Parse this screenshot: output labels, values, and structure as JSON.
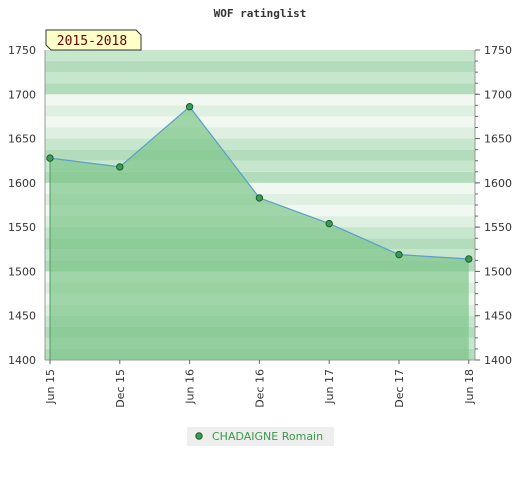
{
  "chart_data": {
    "type": "area",
    "title": "WOF ratinglist",
    "period_badge": "2015-2018",
    "categories": [
      "Jun 15",
      "Dec 15",
      "Jun 16",
      "Dec 16",
      "Jun 17",
      "Dec 17",
      "Jun 18"
    ],
    "y_ticks": [
      "1400",
      "1450",
      "1500",
      "1550",
      "1600",
      "1650",
      "1700",
      "1750"
    ],
    "ylim": [
      1400,
      1750
    ],
    "series": [
      {
        "name": "CHADAIGNE Romain",
        "values": [
          1628,
          1618,
          1686,
          1583,
          1554,
          1519,
          1514
        ]
      }
    ],
    "legend_position": "bottom-center",
    "grid": true,
    "colors": {
      "fill": "#7dc48a",
      "line": "#5b9ec9",
      "marker": "#3c9a55",
      "legend_text": "#3a9a4a",
      "badge_bg": "#ffffc8",
      "badge_text": "#6b0000"
    }
  }
}
